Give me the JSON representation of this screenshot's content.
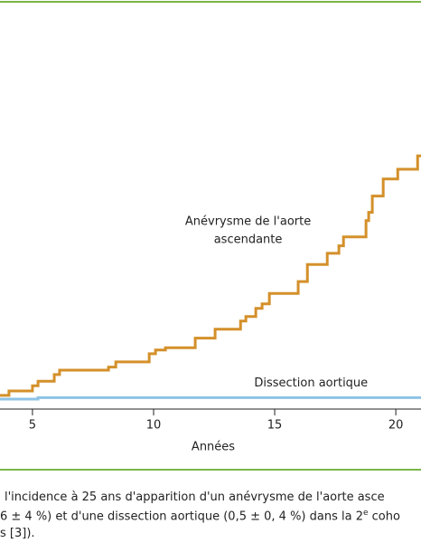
{
  "chart_data": {
    "type": "step",
    "xlabel": "Années",
    "xlim": [
      3.66,
      21.04
    ],
    "xticks": [
      5,
      10,
      15,
      20
    ],
    "ylim": [
      0,
      50
    ],
    "annotations": [
      {
        "lines": [
          "Anévrysme de l'aorte",
          "ascendante"
        ],
        "x": 13.9,
        "y": 22.6
      },
      {
        "lines": [
          "Dissection aortique"
        ],
        "x": 16.5,
        "y": 2.1
      }
    ],
    "series": [
      {
        "color": "#d4902a",
        "x": [
          3.66,
          4.03,
          5.0,
          5.23,
          5.9,
          6.12,
          8.14,
          8.44,
          9.82,
          10.08,
          10.49,
          11.72,
          12.54,
          13.59,
          13.81,
          14.22,
          14.48,
          14.78,
          15.97,
          16.35,
          17.17,
          17.65,
          17.84,
          18.77,
          18.88,
          19.03,
          19.48,
          20.08,
          20.9
        ],
        "values": [
          0.5,
          1.1,
          1.8,
          2.4,
          3.3,
          3.9,
          4.3,
          5.0,
          6.1,
          6.6,
          6.9,
          8.2,
          9.4,
          10.5,
          11.1,
          12.2,
          12.8,
          14.2,
          15.8,
          18.1,
          19.6,
          20.6,
          21.8,
          24.0,
          25.1,
          27.3,
          29.6,
          30.9,
          32.7
        ]
      },
      {
        "color": "#8ec3e6",
        "x": [
          3.66,
          5.23
        ],
        "values": [
          0,
          0.2
        ]
      }
    ]
  },
  "caption": {
    "line1": "l'incidence à 25 ans d'apparition d'un anévrysme de l'aorte asce",
    "line2": "6 ± 4 %) et d'une dissection aortique (0,5 ± 0, 4 %) dans la 2",
    "line2_sup": "e",
    "line2_end": " coho",
    "line3": "s [3])."
  }
}
